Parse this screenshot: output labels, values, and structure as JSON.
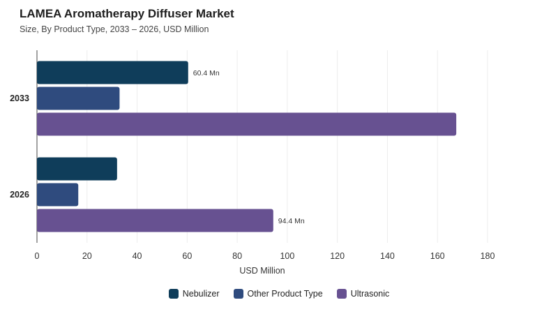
{
  "chart_data": {
    "type": "bar",
    "orientation": "horizontal",
    "title": "LAMEA Aromatherapy Diffuser Market",
    "subtitle": "Size, By Product Type, 2033 – 2026, USD Million",
    "xlabel": "USD Million",
    "ylabel": "",
    "xlim": [
      0,
      180
    ],
    "xticks": [
      "0",
      "20",
      "40",
      "60",
      "80",
      "100",
      "120",
      "140",
      "160",
      "180"
    ],
    "categories": [
      "2033",
      "2026"
    ],
    "series": [
      {
        "name": "Nebulizer",
        "color": "#0f3d5a",
        "values": [
          60.4,
          32
        ],
        "labels": [
          "60.4 Mn",
          ""
        ]
      },
      {
        "name": "Other Product Type",
        "color": "#2f4b7e",
        "values": [
          33,
          16.5
        ],
        "labels": [
          "",
          ""
        ]
      },
      {
        "name": "Ultrasonic",
        "color": "#675191",
        "values": [
          167.5,
          94.4
        ],
        "labels": [
          "",
          "94.4 Mn"
        ]
      }
    ],
    "grid": true,
    "legend_position": "bottom"
  }
}
